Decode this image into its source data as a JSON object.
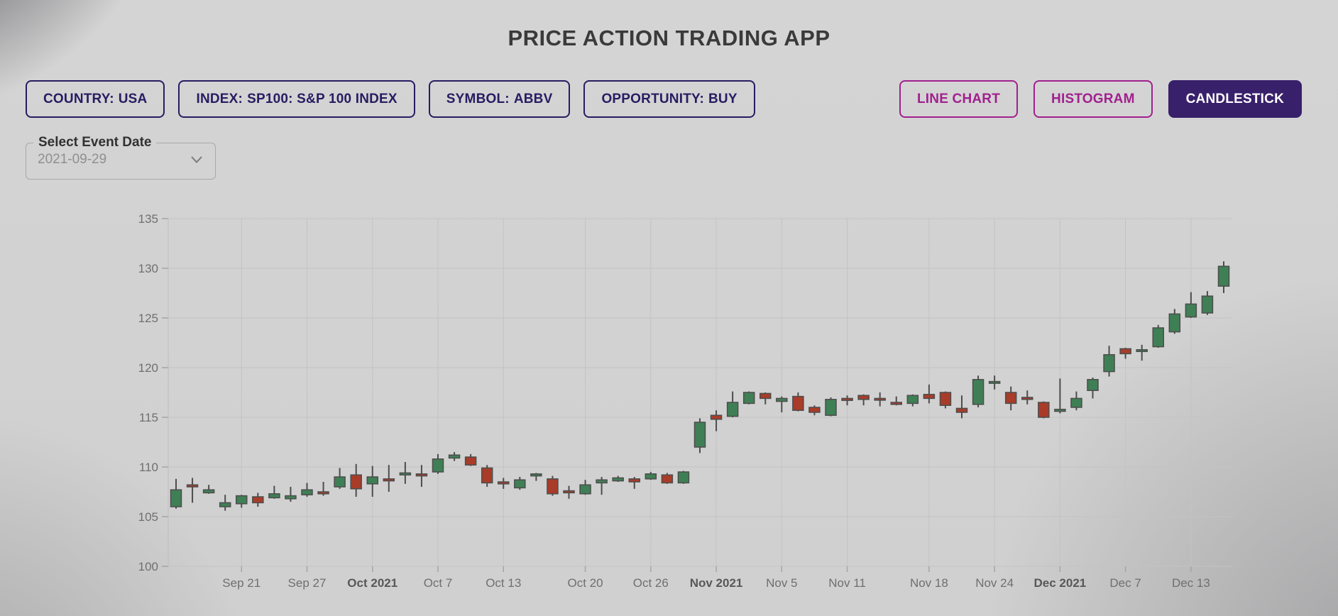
{
  "app": {
    "title": "PRICE ACTION TRADING APP"
  },
  "filters": [
    {
      "label": "COUNTRY:",
      "value": "USA"
    },
    {
      "label": "INDEX:",
      "value": "SP100: S&P 100 INDEX"
    },
    {
      "label": "SYMBOL:",
      "value": "ABBV"
    },
    {
      "label": "OPPORTUNITY:",
      "value": "BUY"
    }
  ],
  "view_buttons": [
    {
      "label": "LINE CHART",
      "active": false
    },
    {
      "label": "HISTOGRAM",
      "active": false
    },
    {
      "label": "CANDLESTICK",
      "active": true
    }
  ],
  "event_date": {
    "label": "Select Event Date",
    "value": "2021-09-29"
  },
  "chart_data": {
    "type": "candlestick",
    "symbol": "ABBV",
    "ylim": [
      100,
      135
    ],
    "grid": true,
    "y_ticks": [
      100,
      105,
      110,
      115,
      120,
      125,
      130,
      135
    ],
    "x_ticks": [
      {
        "label": "Sep 21",
        "i": 4
      },
      {
        "label": "Sep 27",
        "i": 8
      },
      {
        "label": "Oct 2021",
        "i": 12,
        "bold": true
      },
      {
        "label": "Oct 7",
        "i": 16
      },
      {
        "label": "Oct 13",
        "i": 20
      },
      {
        "label": "Oct 20",
        "i": 25
      },
      {
        "label": "Oct 26",
        "i": 29
      },
      {
        "label": "Nov 2021",
        "i": 33,
        "bold": true
      },
      {
        "label": "Nov 5",
        "i": 37
      },
      {
        "label": "Nov 11",
        "i": 41
      },
      {
        "label": "Nov 18",
        "i": 46
      },
      {
        "label": "Nov 24",
        "i": 50
      },
      {
        "label": "Dec 2021",
        "i": 54,
        "bold": true
      },
      {
        "label": "Dec 7",
        "i": 58
      },
      {
        "label": "Dec 13",
        "i": 62
      }
    ],
    "colors": {
      "up": "#3f7f55",
      "down": "#a83c28",
      "wick": "#4d4d4d"
    },
    "candles": [
      {
        "d": "2021-09-15",
        "o": 106.0,
        "h": 108.8,
        "l": 105.8,
        "c": 107.7
      },
      {
        "d": "2021-09-16",
        "o": 108.2,
        "h": 108.9,
        "l": 106.4,
        "c": 108.0
      },
      {
        "d": "2021-09-17",
        "o": 107.4,
        "h": 108.2,
        "l": 107.3,
        "c": 107.7
      },
      {
        "d": "2021-09-20",
        "o": 106.0,
        "h": 107.2,
        "l": 105.6,
        "c": 106.4
      },
      {
        "d": "2021-09-21",
        "o": 106.3,
        "h": 107.2,
        "l": 105.9,
        "c": 107.1
      },
      {
        "d": "2021-09-22",
        "o": 107.0,
        "h": 107.4,
        "l": 106.0,
        "c": 106.4
      },
      {
        "d": "2021-09-23",
        "o": 106.9,
        "h": 108.1,
        "l": 106.8,
        "c": 107.3
      },
      {
        "d": "2021-09-24",
        "o": 106.8,
        "h": 108.0,
        "l": 106.5,
        "c": 107.1
      },
      {
        "d": "2021-09-27",
        "o": 107.2,
        "h": 108.4,
        "l": 107.0,
        "c": 107.7
      },
      {
        "d": "2021-09-28",
        "o": 107.5,
        "h": 108.5,
        "l": 107.1,
        "c": 107.3
      },
      {
        "d": "2021-09-29",
        "o": 108.0,
        "h": 109.9,
        "l": 107.8,
        "c": 109.0
      },
      {
        "d": "2021-09-30",
        "o": 109.2,
        "h": 110.3,
        "l": 107.0,
        "c": 107.8
      },
      {
        "d": "2021-10-01",
        "o": 108.3,
        "h": 110.1,
        "l": 107.0,
        "c": 109.0
      },
      {
        "d": "2021-10-04",
        "o": 108.8,
        "h": 110.2,
        "l": 107.5,
        "c": 108.6
      },
      {
        "d": "2021-10-05",
        "o": 109.2,
        "h": 110.5,
        "l": 108.3,
        "c": 109.4
      },
      {
        "d": "2021-10-06",
        "o": 109.3,
        "h": 110.2,
        "l": 108.0,
        "c": 109.1
      },
      {
        "d": "2021-10-07",
        "o": 109.5,
        "h": 111.3,
        "l": 109.3,
        "c": 110.8
      },
      {
        "d": "2021-10-08",
        "o": 110.9,
        "h": 111.5,
        "l": 110.6,
        "c": 111.2
      },
      {
        "d": "2021-10-11",
        "o": 111.0,
        "h": 111.3,
        "l": 110.1,
        "c": 110.2
      },
      {
        "d": "2021-10-12",
        "o": 109.9,
        "h": 110.2,
        "l": 108.0,
        "c": 108.4
      },
      {
        "d": "2021-10-13",
        "o": 108.5,
        "h": 108.9,
        "l": 107.8,
        "c": 108.3
      },
      {
        "d": "2021-10-14",
        "o": 107.9,
        "h": 109.0,
        "l": 107.7,
        "c": 108.7
      },
      {
        "d": "2021-10-15",
        "o": 109.1,
        "h": 109.4,
        "l": 108.6,
        "c": 109.3
      },
      {
        "d": "2021-10-18",
        "o": 108.8,
        "h": 109.1,
        "l": 107.1,
        "c": 107.3
      },
      {
        "d": "2021-10-19",
        "o": 107.6,
        "h": 108.1,
        "l": 106.8,
        "c": 107.4
      },
      {
        "d": "2021-10-20",
        "o": 107.3,
        "h": 108.7,
        "l": 107.2,
        "c": 108.2
      },
      {
        "d": "2021-10-21",
        "o": 108.4,
        "h": 109.0,
        "l": 107.2,
        "c": 108.7
      },
      {
        "d": "2021-10-22",
        "o": 108.6,
        "h": 109.1,
        "l": 108.5,
        "c": 108.9
      },
      {
        "d": "2021-10-25",
        "o": 108.8,
        "h": 109.0,
        "l": 107.8,
        "c": 108.5
      },
      {
        "d": "2021-10-26",
        "o": 108.8,
        "h": 109.5,
        "l": 108.7,
        "c": 109.3
      },
      {
        "d": "2021-10-27",
        "o": 109.2,
        "h": 109.4,
        "l": 108.3,
        "c": 108.4
      },
      {
        "d": "2021-10-28",
        "o": 108.4,
        "h": 109.6,
        "l": 108.3,
        "c": 109.5
      },
      {
        "d": "2021-10-29",
        "o": 112.0,
        "h": 114.9,
        "l": 111.4,
        "c": 114.5
      },
      {
        "d": "2021-11-01",
        "o": 115.2,
        "h": 115.7,
        "l": 113.6,
        "c": 114.8
      },
      {
        "d": "2021-11-02",
        "o": 115.1,
        "h": 117.6,
        "l": 115.0,
        "c": 116.5
      },
      {
        "d": "2021-11-03",
        "o": 116.4,
        "h": 117.6,
        "l": 116.3,
        "c": 117.5
      },
      {
        "d": "2021-11-04",
        "o": 117.4,
        "h": 117.5,
        "l": 116.3,
        "c": 116.9
      },
      {
        "d": "2021-11-05",
        "o": 116.6,
        "h": 117.1,
        "l": 115.5,
        "c": 116.9
      },
      {
        "d": "2021-11-08",
        "o": 117.1,
        "h": 117.5,
        "l": 115.6,
        "c": 115.7
      },
      {
        "d": "2021-11-09",
        "o": 116.0,
        "h": 116.2,
        "l": 115.2,
        "c": 115.5
      },
      {
        "d": "2021-11-10",
        "o": 115.2,
        "h": 117.0,
        "l": 115.1,
        "c": 116.8
      },
      {
        "d": "2021-11-11",
        "o": 116.9,
        "h": 117.2,
        "l": 116.2,
        "c": 116.7
      },
      {
        "d": "2021-11-12",
        "o": 117.2,
        "h": 117.3,
        "l": 116.2,
        "c": 116.8
      },
      {
        "d": "2021-11-15",
        "o": 116.9,
        "h": 117.5,
        "l": 116.1,
        "c": 116.8
      },
      {
        "d": "2021-11-16",
        "o": 116.5,
        "h": 117.1,
        "l": 116.2,
        "c": 116.3
      },
      {
        "d": "2021-11-17",
        "o": 116.4,
        "h": 117.3,
        "l": 116.1,
        "c": 117.2
      },
      {
        "d": "2021-11-18",
        "o": 117.3,
        "h": 118.3,
        "l": 116.4,
        "c": 116.9
      },
      {
        "d": "2021-11-19",
        "o": 117.5,
        "h": 117.6,
        "l": 115.9,
        "c": 116.2
      },
      {
        "d": "2021-11-22",
        "o": 115.9,
        "h": 117.2,
        "l": 114.9,
        "c": 115.5
      },
      {
        "d": "2021-11-23",
        "o": 116.3,
        "h": 119.2,
        "l": 116.0,
        "c": 118.8
      },
      {
        "d": "2021-11-24",
        "o": 118.5,
        "h": 119.2,
        "l": 117.8,
        "c": 118.6
      },
      {
        "d": "2021-11-26",
        "o": 117.5,
        "h": 118.1,
        "l": 115.7,
        "c": 116.4
      },
      {
        "d": "2021-11-29",
        "o": 117.0,
        "h": 117.7,
        "l": 116.3,
        "c": 116.8
      },
      {
        "d": "2021-11-30",
        "o": 116.5,
        "h": 116.6,
        "l": 114.9,
        "c": 115.0
      },
      {
        "d": "2021-12-01",
        "o": 115.6,
        "h": 118.9,
        "l": 115.4,
        "c": 115.8
      },
      {
        "d": "2021-12-02",
        "o": 116.0,
        "h": 117.6,
        "l": 115.7,
        "c": 116.9
      },
      {
        "d": "2021-12-03",
        "o": 117.7,
        "h": 119.0,
        "l": 116.9,
        "c": 118.8
      },
      {
        "d": "2021-12-06",
        "o": 119.6,
        "h": 122.2,
        "l": 119.1,
        "c": 121.3
      },
      {
        "d": "2021-12-07",
        "o": 121.9,
        "h": 122.0,
        "l": 120.9,
        "c": 121.4
      },
      {
        "d": "2021-12-08",
        "o": 121.7,
        "h": 122.3,
        "l": 120.7,
        "c": 121.8
      },
      {
        "d": "2021-12-09",
        "o": 122.1,
        "h": 124.3,
        "l": 122.0,
        "c": 124.0
      },
      {
        "d": "2021-12-10",
        "o": 123.6,
        "h": 125.9,
        "l": 123.4,
        "c": 125.4
      },
      {
        "d": "2021-12-13",
        "o": 125.1,
        "h": 127.6,
        "l": 125.0,
        "c": 126.4
      },
      {
        "d": "2021-12-14",
        "o": 125.5,
        "h": 127.7,
        "l": 125.3,
        "c": 127.2
      },
      {
        "d": "2021-12-15",
        "o": 128.2,
        "h": 130.7,
        "l": 127.5,
        "c": 130.2
      }
    ]
  }
}
